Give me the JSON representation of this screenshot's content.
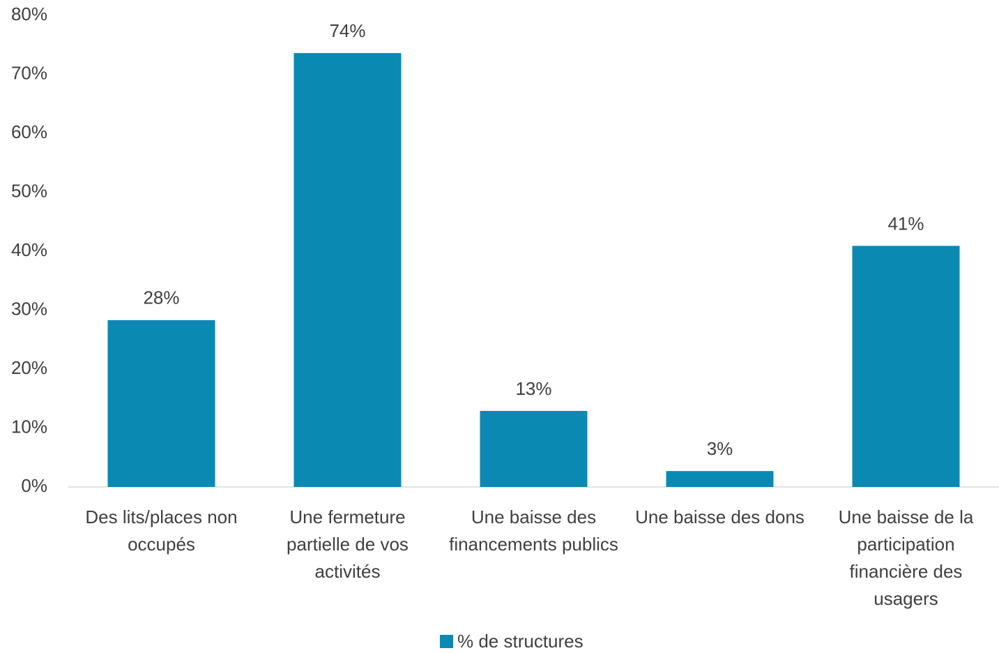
{
  "chart_data": {
    "type": "bar",
    "categories": [
      "Des lits/places non occupés",
      "Une fermeture partielle de vos activités",
      "Une baisse des financements publics",
      "Une baisse des dons",
      "Une baisse de la participation financière des usagers"
    ],
    "series": [
      {
        "name": "% de structures",
        "color": "#0a89b3",
        "values": [
          28.3,
          73.6,
          12.9,
          2.7,
          40.9
        ],
        "value_labels": [
          "28%",
          "74%",
          "13%",
          "3%",
          "41%"
        ]
      }
    ],
    "ylim": [
      0,
      80
    ],
    "yticks": [
      {
        "value": 0,
        "label": "0%"
      },
      {
        "value": 10,
        "label": "10%"
      },
      {
        "value": 20,
        "label": "20%"
      },
      {
        "value": 30,
        "label": "30%"
      },
      {
        "value": 40,
        "label": "40%"
      },
      {
        "value": 50,
        "label": "50%"
      },
      {
        "value": 60,
        "label": "60%"
      },
      {
        "value": 70,
        "label": "70%"
      },
      {
        "value": 80,
        "label": "80%"
      }
    ],
    "grid": false,
    "legend": "bottom"
  }
}
